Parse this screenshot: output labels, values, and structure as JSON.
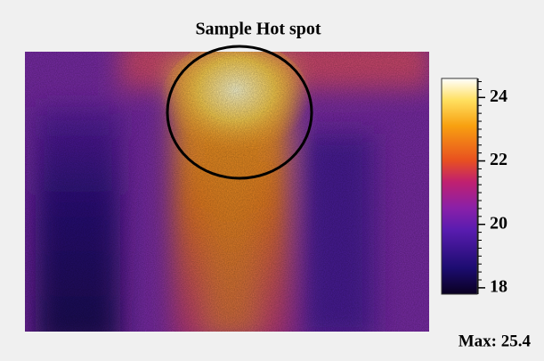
{
  "title": "Sample  Hot spot",
  "colorbar": {
    "lim": [
      17.8,
      24.6
    ],
    "ticks": [
      18,
      20,
      22,
      24
    ]
  },
  "max_text": "Max: 25.4"
}
